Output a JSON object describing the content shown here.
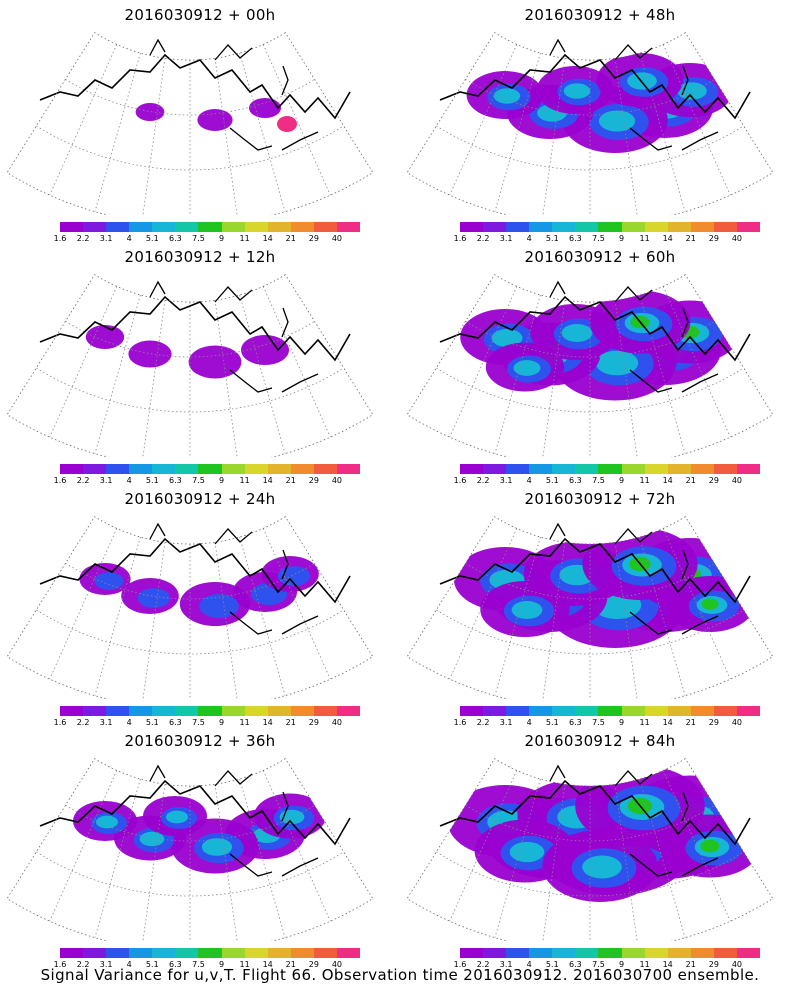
{
  "panels": [
    {
      "title": "2016030912 + 00h",
      "level": 0
    },
    {
      "title": "2016030912 + 48h",
      "level": 4
    },
    {
      "title": "2016030912 + 12h",
      "level": 1
    },
    {
      "title": "2016030912 + 60h",
      "level": 5
    },
    {
      "title": "2016030912 + 24h",
      "level": 2
    },
    {
      "title": "2016030912 + 72h",
      "level": 6
    },
    {
      "title": "2016030912 + 36h",
      "level": 3
    },
    {
      "title": "2016030912 + 84h",
      "level": 7
    }
  ],
  "colorbar": {
    "colors": [
      "#9a00d0",
      "#7e1adf",
      "#2f52ee",
      "#1597e4",
      "#17b6d7",
      "#14c6a8",
      "#1fc421",
      "#9ad72c",
      "#d9d62b",
      "#e2b42b",
      "#f18c2d",
      "#f15b3e",
      "#f02d84"
    ],
    "labels": [
      "1.6",
      "2.2",
      "3.1",
      "4",
      "5.1",
      "6.3",
      "7.5",
      "9",
      "11",
      "14",
      "21",
      "29",
      "40"
    ]
  },
  "footer": "Signal Variance for u,v,T. Flight 66. Observation time 2016030912. 2016030700 ensemble."
}
